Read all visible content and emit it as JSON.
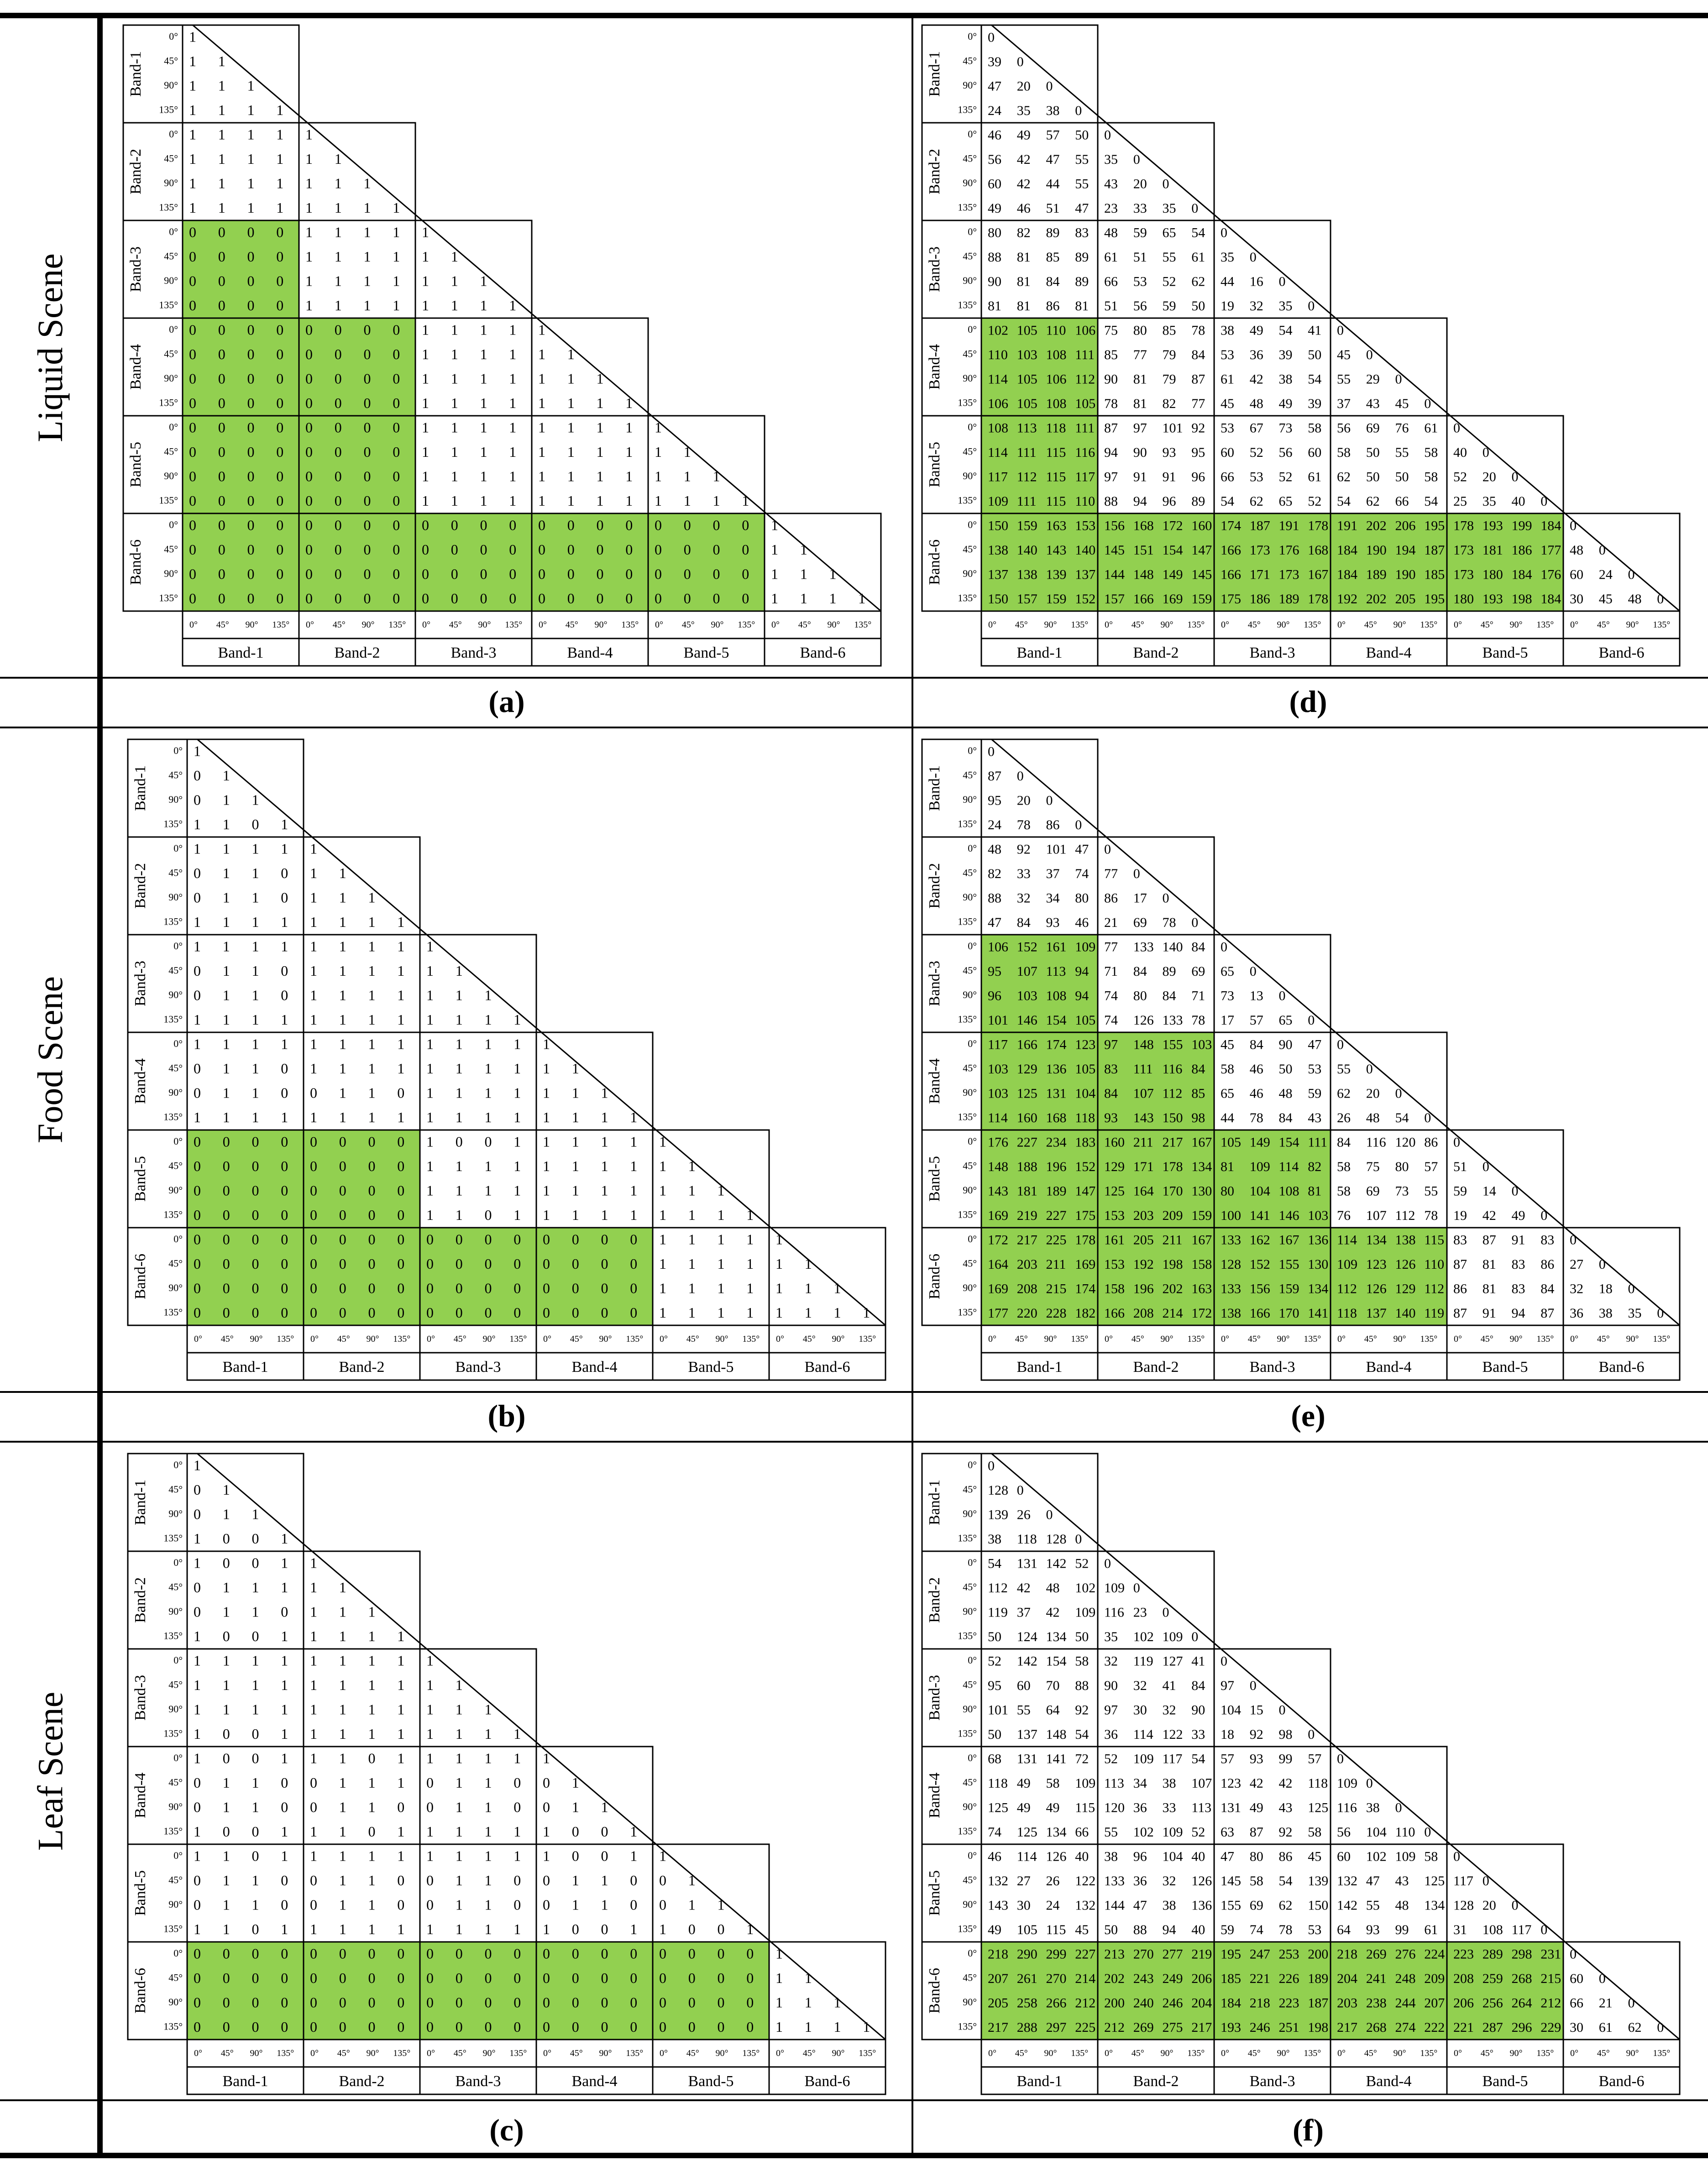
{
  "angles": [
    "0°",
    "45°",
    "90°",
    "135°"
  ],
  "bands": [
    "Band-1",
    "Band-2",
    "Band-3",
    "Band-4",
    "Band-5",
    "Band-6"
  ],
  "colors": {
    "highlight": "#92d050",
    "line": "#000000"
  },
  "scenes": [
    {
      "label": "Liquid Scene"
    },
    {
      "label": "Food Scene"
    },
    {
      "label": "Leaf Scene"
    }
  ],
  "panels": [
    {
      "caption": "(a)",
      "kind": "binary",
      "rows": [
        [
          "1"
        ],
        [
          "1 1"
        ],
        [
          "1 1 1"
        ],
        [
          "1 1 1 1"
        ],
        [
          "1 1 1 1",
          "1"
        ],
        [
          "1 1 1 1",
          "1 1"
        ],
        [
          "1 1 1 1",
          "1 1 1"
        ],
        [
          "1 1 1 1",
          "1 1 1 1"
        ],
        [
          "0 0 0 0",
          "1 1 1 1",
          "1"
        ],
        [
          "0 0 0 0",
          "1 1 1 1",
          "1 1"
        ],
        [
          "0 0 0 0",
          "1 1 1 1",
          "1 1 1"
        ],
        [
          "0 0 0 0",
          "1 1 1 1",
          "1 1 1 1"
        ],
        [
          "0 0 0 0",
          "0 0 0 0",
          "1 1 1 1",
          "1"
        ],
        [
          "0 0 0 0",
          "0 0 0 0",
          "1 1 1 1",
          "1 1"
        ],
        [
          "0 0 0 0",
          "0 0 0 0",
          "1 1 1 1",
          "1 1 1"
        ],
        [
          "0 0 0 0",
          "0 0 0 0",
          "1 1 1 1",
          "1 1 1 1"
        ],
        [
          "0 0 0 0",
          "0 0 0 0",
          "1 1 1 1",
          "1 1 1 1",
          "1"
        ],
        [
          "0 0 0 0",
          "0 0 0 0",
          "1 1 1 1",
          "1 1 1 1",
          "1 1"
        ],
        [
          "0 0 0 0",
          "0 0 0 0",
          "1 1 1 1",
          "1 1 1 1",
          "1 1 1"
        ],
        [
          "0 0 0 0",
          "0 0 0 0",
          "1 1 1 1",
          "1 1 1 1",
          "1 1 1 1"
        ],
        [
          "0 0 0 0",
          "0 0 0 0",
          "0 0 0 0",
          "0 0 0 0",
          "0 0 0 0",
          "1"
        ],
        [
          "0 0 0 0",
          "0 0 0 0",
          "0 0 0 0",
          "0 0 0 0",
          "0 0 0 0",
          "1 1"
        ],
        [
          "0 0 0 0",
          "0 0 0 0",
          "0 0 0 0",
          "0 0 0 0",
          "0 0 0 0",
          "1 1 1"
        ],
        [
          "0 0 0 0",
          "0 0 0 0",
          "0 0 0 0",
          "0 0 0 0",
          "0 0 0 0",
          "1 1 1 1"
        ]
      ],
      "green": [
        [
          2,
          0
        ],
        [
          3,
          0
        ],
        [
          3,
          1
        ],
        [
          4,
          0
        ],
        [
          4,
          1
        ],
        [
          5,
          0
        ],
        [
          5,
          1
        ],
        [
          5,
          2
        ],
        [
          5,
          3
        ],
        [
          5,
          4
        ]
      ]
    },
    {
      "caption": "(b)",
      "kind": "binary",
      "rows": [
        [
          "1"
        ],
        [
          "0 1"
        ],
        [
          "0 1 1"
        ],
        [
          "1 1 0 1"
        ],
        [
          "1 1 1 1",
          "1"
        ],
        [
          "0 1 1 0",
          "1 1"
        ],
        [
          "0 1 1 0",
          "1 1 1"
        ],
        [
          "1 1 1 1",
          "1 1 1 1"
        ],
        [
          "1 1 1 1",
          "1 1 1 1",
          "1"
        ],
        [
          "0 1 1 0",
          "1 1 1 1",
          "1 1"
        ],
        [
          "0 1 1 0",
          "1 1 1 1",
          "1 1 1"
        ],
        [
          "1 1 1 1",
          "1 1 1 1",
          "1 1 1 1"
        ],
        [
          "1 1 1 1",
          "1 1 1 1",
          "1 1 1 1",
          "1"
        ],
        [
          "0 1 1 0",
          "1 1 1 1",
          "1 1 1 1",
          "1 1"
        ],
        [
          "0 1 1 0",
          "0 1 1 0",
          "1 1 1 1",
          "1 1 1"
        ],
        [
          "1 1 1 1",
          "1 1 1 1",
          "1 1 1 1",
          "1 1 1 1"
        ],
        [
          "0 0 0 0",
          "0 0 0 0",
          "1 0 0 1",
          "1 1 1 1",
          "1"
        ],
        [
          "0 0 0 0",
          "0 0 0 0",
          "1 1 1 1",
          "1 1 1 1",
          "1 1"
        ],
        [
          "0 0 0 0",
          "0 0 0 0",
          "1 1 1 1",
          "1 1 1 1",
          "1 1 1"
        ],
        [
          "0 0 0 0",
          "0 0 0 0",
          "1 1 0 1",
          "1 1 1 1",
          "1 1 1 1"
        ],
        [
          "0 0 0 0",
          "0 0 0 0",
          "0 0 0 0",
          "0 0 0 0",
          "1 1 1 1",
          "1"
        ],
        [
          "0 0 0 0",
          "0 0 0 0",
          "0 0 0 0",
          "0 0 0 0",
          "1 1 1 1",
          "1 1"
        ],
        [
          "0 0 0 0",
          "0 0 0 0",
          "0 0 0 0",
          "0 0 0 0",
          "1 1 1 1",
          "1 1 1"
        ],
        [
          "0 0 0 0",
          "0 0 0 0",
          "0 0 0 0",
          "0 0 0 0",
          "1 1 1 1",
          "1 1 1 1"
        ]
      ],
      "green": [
        [
          4,
          0
        ],
        [
          4,
          1
        ],
        [
          5,
          0
        ],
        [
          5,
          1
        ],
        [
          5,
          2
        ],
        [
          5,
          3
        ]
      ]
    },
    {
      "caption": "(c)",
      "kind": "binary",
      "rows": [
        [
          "1"
        ],
        [
          "0 1"
        ],
        [
          "0 1 1"
        ],
        [
          "1 0 0 1"
        ],
        [
          "1 0 0 1",
          "1"
        ],
        [
          "0 1 1 1",
          "1 1"
        ],
        [
          "0 1 1 0",
          "1 1 1"
        ],
        [
          "1 0 0 1",
          "1 1 1 1"
        ],
        [
          "1 1 1 1",
          "1 1 1 1",
          "1"
        ],
        [
          "1 1 1 1",
          "1 1 1 1",
          "1 1"
        ],
        [
          "1 1 1 1",
          "1 1 1 1",
          "1 1 1"
        ],
        [
          "1 0 0 1",
          "1 1 1 1",
          "1 1 1 1"
        ],
        [
          "1 0 0 1",
          "1 1 0 1",
          "1 1 1 1",
          "1"
        ],
        [
          "0 1 1 0",
          "0 1 1 1",
          "0 1 1 0",
          "0 1"
        ],
        [
          "0 1 1 0",
          "0 1 1 0",
          "0 1 1 0",
          "0 1 1"
        ],
        [
          "1 0 0 1",
          "1 1 0 1",
          "1 1 1 1",
          "1 0 0 1"
        ],
        [
          "1 1 0 1",
          "1 1 1 1",
          "1 1 1 1",
          "1 0 0 1",
          "1"
        ],
        [
          "0 1 1 0",
          "0 1 1 0",
          "0 1 1 0",
          "0 1 1 0",
          "0 1"
        ],
        [
          "0 1 1 0",
          "0 1 1 0",
          "0 1 1 0",
          "0 1 1 0",
          "0 1 1"
        ],
        [
          "1 1 0 1",
          "1 1 1 1",
          "1 1 1 1",
          "1 0 0 1",
          "1 0 0 1"
        ],
        [
          "0 0 0 0",
          "0 0 0 0",
          "0 0 0 0",
          "0 0 0 0",
          "0 0 0 0",
          "1"
        ],
        [
          "0 0 0 0",
          "0 0 0 0",
          "0 0 0 0",
          "0 0 0 0",
          "0 0 0 0",
          "1 1"
        ],
        [
          "0 0 0 0",
          "0 0 0 0",
          "0 0 0 0",
          "0 0 0 0",
          "0 0 0 0",
          "1 1 1"
        ],
        [
          "0 0 0 0",
          "0 0 0 0",
          "0 0 0 0",
          "0 0 0 0",
          "0 0 0 0",
          "1 1 1 1"
        ]
      ],
      "green": [
        [
          5,
          0
        ],
        [
          5,
          1
        ],
        [
          5,
          2
        ],
        [
          5,
          3
        ],
        [
          5,
          4
        ]
      ]
    },
    {
      "caption": "(d)",
      "kind": "numeric",
      "rows": [
        [
          "0"
        ],
        [
          "39 0"
        ],
        [
          "47 20 0"
        ],
        [
          "24 35 38 0"
        ],
        [
          "46 49 57 50",
          "0"
        ],
        [
          "56 42 47 55",
          "35 0"
        ],
        [
          "60 42 44 55",
          "43 20 0"
        ],
        [
          "49 46 51 47",
          "23 33 35 0"
        ],
        [
          "80 82 89 83",
          "48 59 65 54",
          "0"
        ],
        [
          "88 81 85 89",
          "61 51 55 61",
          "35 0"
        ],
        [
          "90 81 84 89",
          "66 53 52 62",
          "44 16 0"
        ],
        [
          "81 81 86 81",
          "51 56 59 50",
          "19 32 35 0"
        ],
        [
          "102 105 110 106",
          "75 80 85 78",
          "38 49 54 41",
          "0"
        ],
        [
          "110 103 108 111",
          "85 77 79 84",
          "53 36 39 50",
          "45 0"
        ],
        [
          "114 105 106 112",
          "90 81 79 87",
          "61 42 38 54",
          "55 29 0"
        ],
        [
          "106 105 108 105",
          "78 81 82 77",
          "45 48 49 39",
          "37 43 45 0"
        ],
        [
          "108 113 118 111",
          "87 97 101 92",
          "53 67 73 58",
          "56 69 76 61",
          "0"
        ],
        [
          "114 111 115 116",
          "94 90 93 95",
          "60 52 56 60",
          "58 50 55 58",
          "40 0"
        ],
        [
          "117 112 115 117",
          "97 91 91 96",
          "66 53 52 61",
          "62 50 50 58",
          "52 20 0"
        ],
        [
          "109 111 115 110",
          "88 94 96 89",
          "54 62 65 52",
          "54 62 66 54",
          "25 35 40 0"
        ],
        [
          "150 159 163 153",
          "156 168 172 160",
          "174 187 191 178",
          "191 202 206 195",
          "178 193 199 184",
          "0"
        ],
        [
          "138 140 143 140",
          "145 151 154 147",
          "166 173 176 168",
          "184 190 194 187",
          "173 181 186 177",
          "48 0"
        ],
        [
          "137 138 139 137",
          "144 148 149 145",
          "166 171 173 167",
          "184 189 190 185",
          "173 180 184 176",
          "60 24 0"
        ],
        [
          "150 157 159 152",
          "157 166 169 159",
          "175 186 189 178",
          "192 202 205 195",
          "180 193 198 184",
          "30 45 48 0"
        ]
      ],
      "green": [
        [
          3,
          0
        ],
        [
          4,
          0
        ],
        [
          5,
          0
        ],
        [
          5,
          1
        ],
        [
          5,
          2
        ],
        [
          5,
          3
        ],
        [
          5,
          4
        ]
      ]
    },
    {
      "caption": "(e)",
      "kind": "numeric",
      "rows": [
        [
          "0"
        ],
        [
          "87 0"
        ],
        [
          "95 20 0"
        ],
        [
          "24 78 86 0"
        ],
        [
          "48 92 101 47",
          "0"
        ],
        [
          "82 33 37 74",
          "77 0"
        ],
        [
          "88 32 34 80",
          "86 17 0"
        ],
        [
          "47 84 93 46",
          "21 69 78 0"
        ],
        [
          "106 152 161 109",
          "77 133 140 84",
          "0"
        ],
        [
          "95 107 113 94",
          "71 84 89 69",
          "65 0"
        ],
        [
          "96 103 108 94",
          "74 80 84 71",
          "73 13 0"
        ],
        [
          "101 146 154 105",
          "74 126 133 78",
          "17 57 65 0"
        ],
        [
          "117 166 174 123",
          "97 148 155 103",
          "45 84 90 47",
          "0"
        ],
        [
          "103 129 136 105",
          "83 111 116 84",
          "58 46 50 53",
          "55 0"
        ],
        [
          "103 125 131 104",
          "84 107 112 85",
          "65 46 48 59",
          "62 20 0"
        ],
        [
          "114 160 168 118",
          "93 143 150 98",
          "44 78 84 43",
          "26 48 54 0"
        ],
        [
          "176 227 234 183",
          "160 211 217 167",
          "105 149 154 111",
          "84 116 120 86",
          "0"
        ],
        [
          "148 188 196 152",
          "129 171 178 134",
          "81 109 114 82",
          "58 75 80 57",
          "51 0"
        ],
        [
          "143 181 189 147",
          "125 164 170 130",
          "80 104 108 81",
          "58 69 73 55",
          "59 14 0"
        ],
        [
          "169 219 227 175",
          "153 203 209 159",
          "100 141 146 103",
          "76 107 112 78",
          "19 42 49 0"
        ],
        [
          "172 217 225 178",
          "161 205 211 167",
          "133 162 167 136",
          "114 134 138 115",
          "83 87 91 83",
          "0"
        ],
        [
          "164 203 211 169",
          "153 192 198 158",
          "128 152 155 130",
          "109 123 126 110",
          "87 81 83 86",
          "27 0"
        ],
        [
          "169 208 215 174",
          "158 196 202 163",
          "133 156 159 134",
          "112 126 129 112",
          "86 81 83 84",
          "32 18 0"
        ],
        [
          "177 220 228 182",
          "166 208 214 172",
          "138 166 170 141",
          "118 137 140 119",
          "87 91 94 87",
          "36 38 35 0"
        ]
      ],
      "green": [
        [
          2,
          0
        ],
        [
          3,
          0
        ],
        [
          3,
          1
        ],
        [
          4,
          0
        ],
        [
          4,
          1
        ],
        [
          4,
          2
        ],
        [
          5,
          0
        ],
        [
          5,
          1
        ],
        [
          5,
          2
        ],
        [
          5,
          3
        ]
      ]
    },
    {
      "caption": "(f)",
      "kind": "numeric",
      "rows": [
        [
          "0"
        ],
        [
          "128 0"
        ],
        [
          "139 26 0"
        ],
        [
          "38 118 128 0"
        ],
        [
          "54 131 142 52",
          "0"
        ],
        [
          "112 42 48 102",
          "109 0"
        ],
        [
          "119 37 42 109",
          "116 23 0"
        ],
        [
          "50 124 134 50",
          "35 102 109 0"
        ],
        [
          "52 142 154 58",
          "32 119 127 41",
          "0"
        ],
        [
          "95 60 70 88",
          "90 32 41 84",
          "97 0"
        ],
        [
          "101 55 64 92",
          "97 30 32 90",
          "104 15 0"
        ],
        [
          "50 137 148 54",
          "36 114 122 33",
          "18 92 98 0"
        ],
        [
          "68 131 141 72",
          "52 109 117 54",
          "57 93 99 57",
          "0"
        ],
        [
          "118 49 58 109",
          "113 34 38 107",
          "123 42 42 118",
          "109 0"
        ],
        [
          "125 49 49 115",
          "120 36 33 113",
          "131 49 43 125",
          "116 38 0"
        ],
        [
          "74 125 134 66",
          "55 102 109 52",
          "63 87 92 58",
          "56 104 110 0"
        ],
        [
          "46 114 126 40",
          "38 96 104 40",
          "47 80 86 45",
          "60 102 109 58",
          "0"
        ],
        [
          "132 27 26 122",
          "133 36 32 126",
          "145 58 54 139",
          "132 47 43 125",
          "117 0"
        ],
        [
          "143 30 24 132",
          "144 47 38 136",
          "155 69 62 150",
          "142 55 48 134",
          "128 20 0"
        ],
        [
          "49 105 115 45",
          "50 88 94 40",
          "59 74 78 53",
          "64 93 99 61",
          "31 108 117 0"
        ],
        [
          "218 290 299 227",
          "213 270 277 219",
          "195 247 253 200",
          "218 269 276 224",
          "223 289 298 231",
          "0"
        ],
        [
          "207 261 270 214",
          "202 243 249 206",
          "185 221 226 189",
          "204 241 248 209",
          "208 259 268 215",
          "60 0"
        ],
        [
          "205 258 266 212",
          "200 240 246 204",
          "184 218 223 187",
          "203 238 244 207",
          "206 256 264 212",
          "66 21 0"
        ],
        [
          "217 288 297 225",
          "212 269 275 217",
          "193 246 251 198",
          "217 268 274 222",
          "221 287 296 229",
          "30 61 62 0"
        ]
      ],
      "green": [
        [
          5,
          0
        ],
        [
          5,
          1
        ],
        [
          5,
          2
        ],
        [
          5,
          3
        ],
        [
          5,
          4
        ]
      ]
    }
  ]
}
